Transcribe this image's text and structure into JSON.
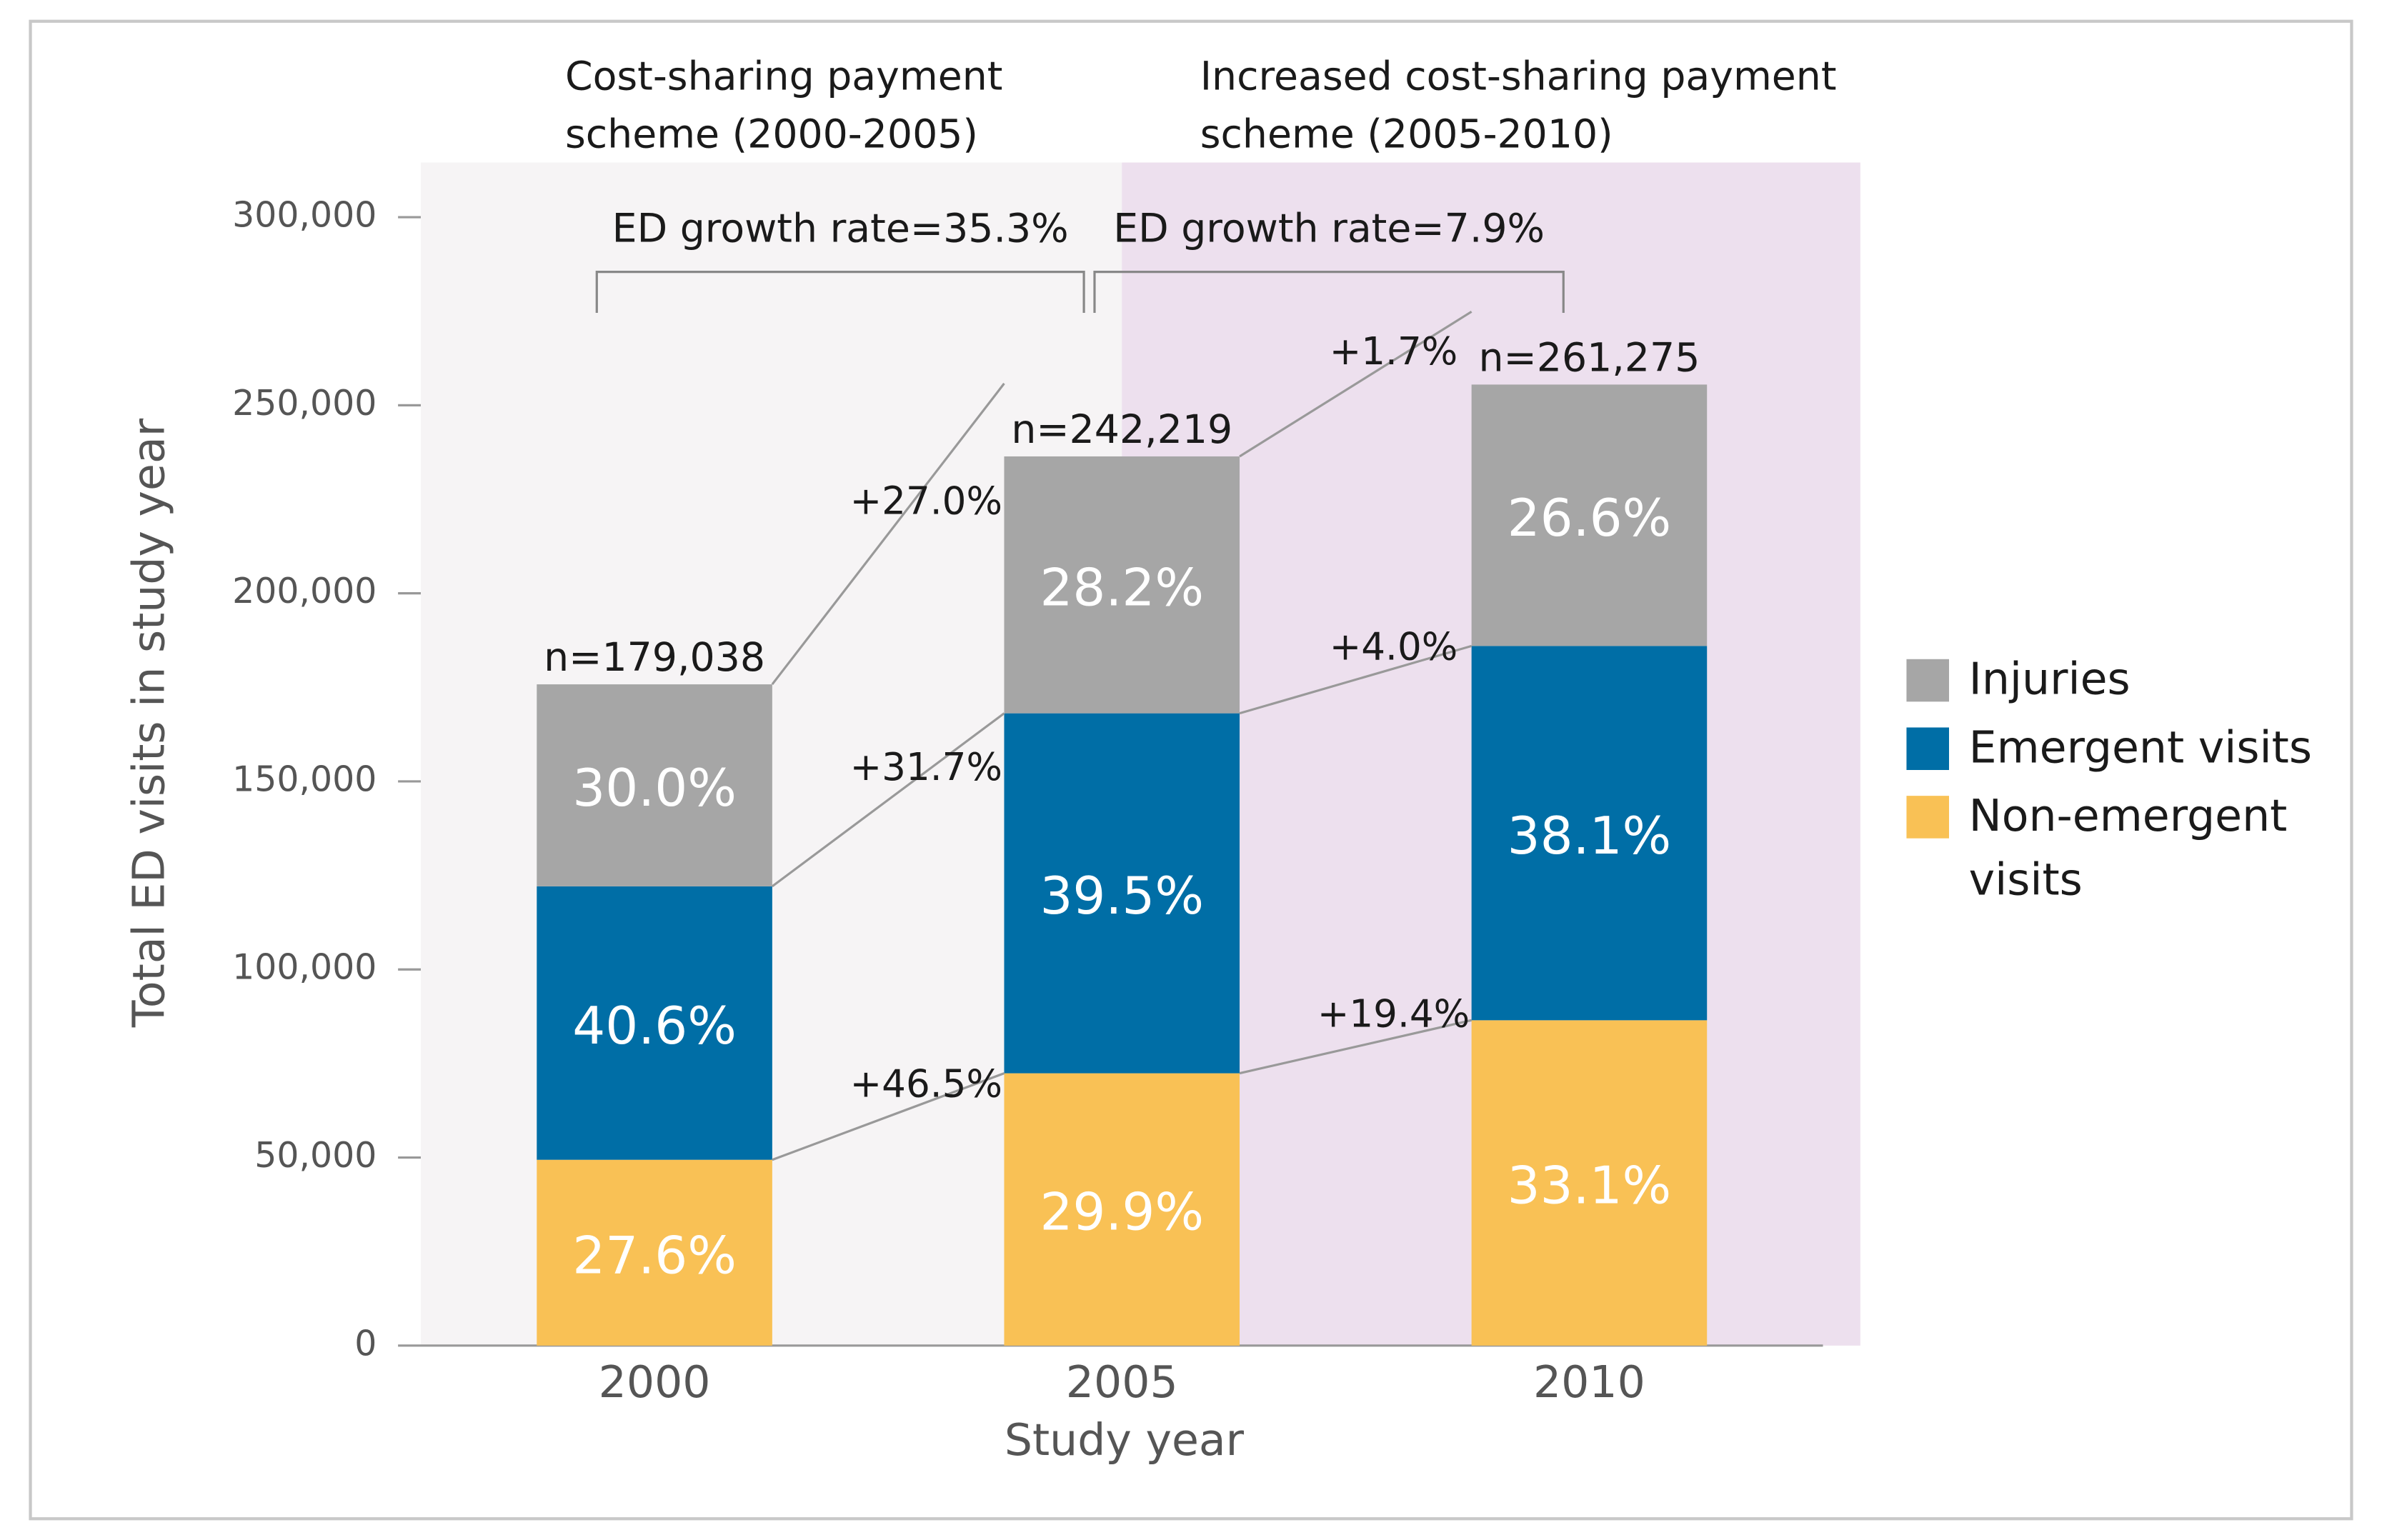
{
  "chart_data": {
    "type": "stacked-bar",
    "x_label": "Study year",
    "y_label": "Total ED visits in study year",
    "categories": [
      "2000",
      "2005",
      "2010"
    ],
    "series": [
      {
        "name": "Non-emergent visits",
        "color": "#f9c155",
        "values": [
          49400,
          72400,
          86500
        ],
        "shares": [
          "27.6%",
          "29.9%",
          "33.1%"
        ],
        "growth": [
          "+46.5%",
          "+19.4%"
        ]
      },
      {
        "name": "Emergent visits",
        "color": "#006ea6",
        "values": [
          72700,
          95700,
          99500
        ],
        "shares": [
          "40.6%",
          "39.5%",
          "38.1%"
        ],
        "growth": [
          "+31.7%",
          "+4.0%"
        ]
      },
      {
        "name": "Injuries",
        "color": "#a6a6a6",
        "values": [
          53700,
          68300,
          69500
        ],
        "shares": [
          "30.0%",
          "28.2%",
          "26.6%"
        ],
        "growth": [
          "+27.0%",
          "+1.7%"
        ]
      }
    ],
    "totals": [
      "n=179,038",
      "n=242,219",
      "n=261,275"
    ],
    "periods": [
      {
        "label": [
          "Cost-sharing payment",
          "scheme (2000-2005)"
        ],
        "growth": "ED growth rate=35.3%",
        "color": "#f6f4f5"
      },
      {
        "label": [
          "Increased cost-sharing payment",
          "scheme (2005-2010)"
        ],
        "growth": "ED growth rate=7.9%",
        "color": "#ede0ee"
      }
    ],
    "ylim": [
      0,
      300000
    ],
    "yticks": [
      0,
      {
        "value": 50000,
        "label": "50,000"
      },
      {
        "value": 100000,
        "label": "100,000"
      },
      {
        "value": 150000,
        "label": "150,000"
      },
      {
        "value": 200000,
        "label": "200,000"
      },
      {
        "value": 250000,
        "label": "250,000"
      },
      {
        "value": 300000,
        "label": "300,000"
      }
    ],
    "legend": "right"
  }
}
